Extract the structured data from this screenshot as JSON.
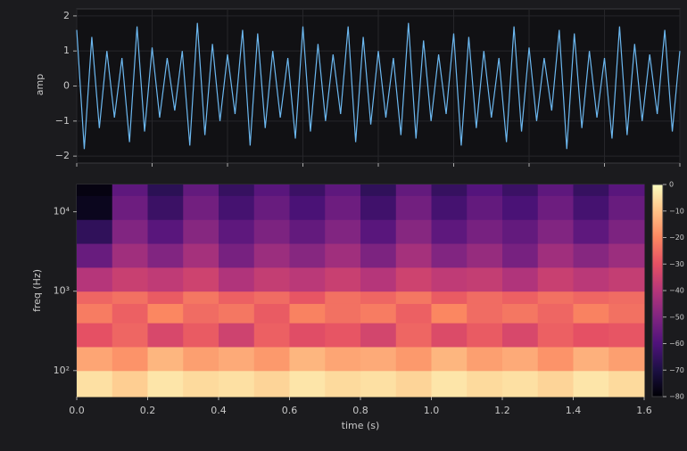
{
  "chart_data": [
    {
      "type": "line",
      "ylabel": "amp",
      "color": "#6cb8f0",
      "grid": true,
      "x": [
        0,
        0.02,
        0.04,
        0.06,
        0.08,
        0.1,
        0.12,
        0.14,
        0.16,
        0.18,
        0.2,
        0.22,
        0.24,
        0.26,
        0.28,
        0.3,
        0.32,
        0.34,
        0.36,
        0.38,
        0.4,
        0.42,
        0.44,
        0.46,
        0.48,
        0.5,
        0.52,
        0.54,
        0.56,
        0.58,
        0.6,
        0.62,
        0.64,
        0.66,
        0.68,
        0.7,
        0.72,
        0.74,
        0.76,
        0.78,
        0.8,
        0.82,
        0.84,
        0.86,
        0.88,
        0.9,
        0.92,
        0.94,
        0.96,
        0.98,
        1,
        1.02,
        1.04,
        1.06,
        1.08,
        1.1,
        1.12,
        1.14,
        1.16,
        1.18,
        1.2,
        1.22,
        1.24,
        1.26,
        1.28,
        1.3,
        1.32,
        1.34,
        1.36,
        1.38,
        1.4,
        1.42,
        1.44,
        1.46,
        1.48,
        1.5,
        1.52,
        1.54,
        1.56,
        1.58,
        1.6
      ],
      "values": [
        1.6,
        -1.8,
        1.4,
        -1.2,
        1.0,
        -0.9,
        0.8,
        -1.6,
        1.7,
        -1.3,
        1.1,
        -0.9,
        0.8,
        -0.7,
        1.0,
        -1.7,
        1.8,
        -1.4,
        1.2,
        -1.0,
        0.9,
        -0.8,
        1.6,
        -1.7,
        1.5,
        -1.2,
        1.0,
        -0.9,
        0.8,
        -1.5,
        1.7,
        -1.3,
        1.2,
        -1.0,
        0.9,
        -0.8,
        1.7,
        -1.6,
        1.4,
        -1.1,
        1.0,
        -0.9,
        0.8,
        -1.4,
        1.8,
        -1.5,
        1.3,
        -1.0,
        0.9,
        -0.8,
        1.5,
        -1.7,
        1.4,
        -1.2,
        1.0,
        -0.9,
        0.8,
        -1.6,
        1.7,
        -1.3,
        1.1,
        -1.0,
        0.8,
        -0.7,
        1.6,
        -1.8,
        1.5,
        -1.2,
        1.0,
        -0.9,
        0.8,
        -1.5,
        1.7,
        -1.4,
        1.2,
        -1.0,
        0.9,
        -0.8,
        1.6,
        -1.3,
        1.0
      ],
      "xlim": [
        0,
        1.6
      ],
      "xticks": [
        0,
        0.2,
        0.4,
        0.6,
        0.8,
        1,
        1.2,
        1.4,
        1.6
      ],
      "ylim": [
        -2.2,
        2.2
      ],
      "yticks": [
        {
          "value": -2,
          "label": "−2"
        },
        {
          "value": -1,
          "label": "−1"
        },
        0,
        1,
        2
      ]
    },
    {
      "type": "heatmap",
      "xlabel": "time (s)",
      "ylabel": "freq (Hz)",
      "yscale": "log",
      "colormap": "magma",
      "x": [
        0,
        0.1,
        0.2,
        0.3,
        0.4,
        0.5,
        0.6,
        0.7,
        0.8,
        0.9,
        1,
        1.1,
        1.2,
        1.3,
        1.4,
        1.5,
        1.6
      ],
      "y": [
        47,
        100,
        200,
        400,
        700,
        1000,
        2000,
        4000,
        8000,
        16000,
        22050
      ],
      "values": [
        [
          -5,
          -8,
          -4,
          -6,
          -5,
          -7,
          -4,
          -6,
          -5,
          -7,
          -4,
          -6,
          -5,
          -7,
          -4,
          -6
        ],
        [
          -15,
          -18,
          -12,
          -16,
          -14,
          -17,
          -12,
          -15,
          -14,
          -17,
          -12,
          -16,
          -14,
          -18,
          -13,
          -16
        ],
        [
          -30,
          -26,
          -33,
          -28,
          -35,
          -27,
          -31,
          -29,
          -34,
          -26,
          -32,
          -28,
          -33,
          -27,
          -30,
          -29
        ],
        [
          -22,
          -27,
          -20,
          -25,
          -23,
          -28,
          -21,
          -24,
          -22,
          -27,
          -20,
          -25,
          -23,
          -26,
          -21,
          -24
        ],
        [
          -26,
          -24,
          -28,
          -23,
          -27,
          -25,
          -29,
          -24,
          -26,
          -23,
          -28,
          -25,
          -27,
          -24,
          -26,
          -25
        ],
        [
          -40,
          -36,
          -38,
          -35,
          -41,
          -37,
          -39,
          -36,
          -40,
          -35,
          -38,
          -37,
          -41,
          -36,
          -39,
          -37
        ],
        [
          -55,
          -44,
          -50,
          -43,
          -52,
          -45,
          -49,
          -44,
          -51,
          -43,
          -50,
          -46,
          -52,
          -44,
          -49,
          -45
        ],
        [
          -66,
          -50,
          -58,
          -49,
          -57,
          -51,
          -56,
          -50,
          -58,
          -49,
          -57,
          -52,
          -56,
          -50,
          -57,
          -51
        ],
        [
          -76,
          -54,
          -64,
          -53,
          -62,
          -55,
          -61,
          -54,
          -63,
          -53,
          -62,
          -56,
          -61,
          -54,
          -62,
          -55
        ],
        [
          -78,
          -57,
          -67,
          -56,
          -65,
          -58,
          -64,
          -57,
          -66,
          -56,
          -65,
          -59,
          -64,
          -57,
          -65,
          -58
        ]
      ],
      "xlim": [
        0,
        1.6
      ],
      "xticks": [
        {
          "value": 0,
          "label": "0.0"
        },
        0.2,
        0.4,
        0.6,
        0.8,
        {
          "value": 1,
          "label": "1.0"
        },
        1.2,
        1.4,
        1.6
      ],
      "ylim": [
        47,
        22050
      ],
      "yticks": [
        {
          "value": 100,
          "label": "10²"
        },
        {
          "value": 1000,
          "label": "10³"
        },
        {
          "value": 10000,
          "label": "10⁴"
        }
      ],
      "colorbar": {
        "lim": [
          -80,
          0
        ],
        "ticks": [
          0,
          {
            "value": -10,
            "label": "−10"
          },
          {
            "value": -20,
            "label": "−20"
          },
          {
            "value": -30,
            "label": "−30"
          },
          {
            "value": -40,
            "label": "−40"
          },
          {
            "value": -50,
            "label": "−50"
          },
          {
            "value": -60,
            "label": "−60"
          },
          {
            "value": -70,
            "label": "−70"
          },
          {
            "value": -80,
            "label": "−80"
          }
        ]
      }
    }
  ]
}
